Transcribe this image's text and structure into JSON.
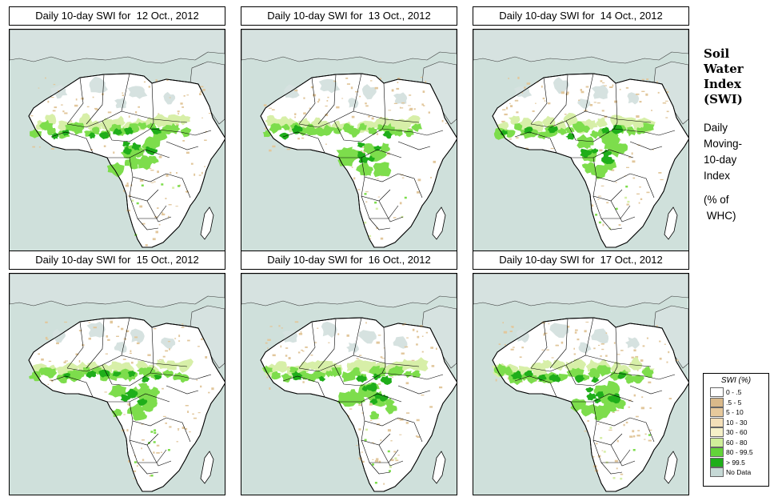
{
  "panels": [
    {
      "title": "Daily 10-day SWI for  12 Oct., 2012",
      "variant": 0
    },
    {
      "title": "Daily 10-day SWI for  13 Oct., 2012",
      "variant": 1
    },
    {
      "title": "Daily 10-day SWI for  14 Oct., 2012",
      "variant": 2
    },
    {
      "title": "Daily 10-day SWI for  15 Oct., 2012",
      "variant": 3
    },
    {
      "title": "Daily 10-day SWI for  16 Oct., 2012",
      "variant": 4
    },
    {
      "title": "Daily 10-day SWI for  17 Oct., 2012",
      "variant": 5
    }
  ],
  "side": {
    "title_lines": [
      "Soil",
      "Water",
      "Index",
      "(SWI)"
    ],
    "sub_lines": [
      "Daily",
      "Moving-",
      "10-day",
      "Index"
    ],
    "unit_lines": [
      "(% of",
      " WHC)"
    ]
  },
  "legend": {
    "title": "SWI (%)",
    "items": [
      {
        "label": "0 - .5",
        "color": "#ffffff"
      },
      {
        "label": ".5 - 5",
        "color": "#d9b98a"
      },
      {
        "label": "5 - 10",
        "color": "#e6c99c"
      },
      {
        "label": "10 - 30",
        "color": "#f3dfb8"
      },
      {
        "label": "30 - 60",
        "color": "#f5f0c8"
      },
      {
        "label": "60 - 80",
        "color": "#cfee9a"
      },
      {
        "label": "80 - 99.5",
        "color": "#63d43a"
      },
      {
        "label": "> 99.5",
        "color": "#1fae1a"
      },
      {
        "label": "No Data",
        "color": "#c6d9d6"
      }
    ]
  },
  "colors": {
    "sea": "#cfe0db",
    "land": "#ffffff",
    "desert": "#d6e2e0",
    "dry": "#e2c79c",
    "light_green": "#d7efa8",
    "mid_green": "#7ddd4c",
    "dark_green": "#1fae1a",
    "border": "#000000"
  }
}
